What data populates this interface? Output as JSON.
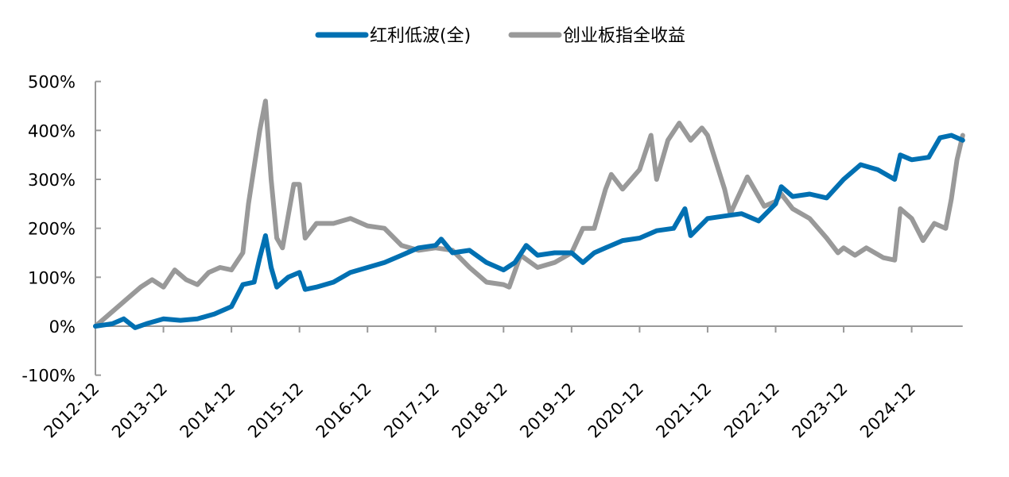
{
  "chart_data": {
    "type": "line",
    "title": "",
    "xlabel": "",
    "ylabel": "",
    "ylim": [
      -100,
      500
    ],
    "y_ticks": [
      "500%",
      "400%",
      "300%",
      "200%",
      "100%",
      "0%",
      "-100%"
    ],
    "y_tick_values": [
      500,
      400,
      300,
      200,
      100,
      0,
      -100
    ],
    "x_ticks": [
      "2012-12",
      "2013-12",
      "2014-12",
      "2015-12",
      "2016-12",
      "2017-12",
      "2018-12",
      "2019-12",
      "2020-12",
      "2021-12",
      "2022-12",
      "2023-12",
      "2024-12"
    ],
    "x_range": [
      "2012-12",
      "2025-09"
    ],
    "grid": false,
    "legend_position": "top",
    "series": [
      {
        "name": "红利低波(全)",
        "color": "#0070B2",
        "points": [
          [
            "2012-12",
            0
          ],
          [
            "2013-03",
            5
          ],
          [
            "2013-05",
            15
          ],
          [
            "2013-07",
            -3
          ],
          [
            "2013-09",
            5
          ],
          [
            "2013-12",
            15
          ],
          [
            "2014-03",
            12
          ],
          [
            "2014-06",
            15
          ],
          [
            "2014-09",
            25
          ],
          [
            "2014-11",
            35
          ],
          [
            "2014-12",
            40
          ],
          [
            "2015-02",
            85
          ],
          [
            "2015-04",
            90
          ],
          [
            "2015-05",
            140
          ],
          [
            "2015-06",
            185
          ],
          [
            "2015-07",
            120
          ],
          [
            "2015-08",
            80
          ],
          [
            "2015-10",
            100
          ],
          [
            "2015-12",
            110
          ],
          [
            "2016-01",
            75
          ],
          [
            "2016-03",
            80
          ],
          [
            "2016-06",
            90
          ],
          [
            "2016-09",
            110
          ],
          [
            "2016-12",
            120
          ],
          [
            "2017-03",
            130
          ],
          [
            "2017-06",
            145
          ],
          [
            "2017-09",
            160
          ],
          [
            "2017-12",
            165
          ],
          [
            "2018-01",
            178
          ],
          [
            "2018-03",
            150
          ],
          [
            "2018-06",
            155
          ],
          [
            "2018-09",
            130
          ],
          [
            "2018-12",
            115
          ],
          [
            "2019-02",
            130
          ],
          [
            "2019-04",
            165
          ],
          [
            "2019-06",
            145
          ],
          [
            "2019-09",
            150
          ],
          [
            "2019-12",
            150
          ],
          [
            "2020-02",
            130
          ],
          [
            "2020-04",
            150
          ],
          [
            "2020-06",
            160
          ],
          [
            "2020-09",
            175
          ],
          [
            "2020-12",
            180
          ],
          [
            "2021-03",
            195
          ],
          [
            "2021-06",
            200
          ],
          [
            "2021-08",
            240
          ],
          [
            "2021-09",
            185
          ],
          [
            "2021-12",
            220
          ],
          [
            "2022-03",
            225
          ],
          [
            "2022-06",
            230
          ],
          [
            "2022-09",
            215
          ],
          [
            "2022-12",
            250
          ],
          [
            "2023-01",
            285
          ],
          [
            "2023-03",
            265
          ],
          [
            "2023-06",
            270
          ],
          [
            "2023-09",
            262
          ],
          [
            "2023-12",
            300
          ],
          [
            "2024-03",
            330
          ],
          [
            "2024-06",
            320
          ],
          [
            "2024-09",
            300
          ],
          [
            "2024-10",
            350
          ],
          [
            "2024-12",
            340
          ],
          [
            "2025-03",
            345
          ],
          [
            "2025-05",
            385
          ],
          [
            "2025-07",
            390
          ],
          [
            "2025-09",
            380
          ]
        ]
      },
      {
        "name": "创业板指全收益",
        "color": "#999999",
        "points": [
          [
            "2012-12",
            0
          ],
          [
            "2013-02",
            20
          ],
          [
            "2013-05",
            50
          ],
          [
            "2013-08",
            80
          ],
          [
            "2013-10",
            95
          ],
          [
            "2013-12",
            80
          ],
          [
            "2014-02",
            115
          ],
          [
            "2014-04",
            95
          ],
          [
            "2014-06",
            85
          ],
          [
            "2014-08",
            110
          ],
          [
            "2014-10",
            120
          ],
          [
            "2014-12",
            115
          ],
          [
            "2015-02",
            150
          ],
          [
            "2015-03",
            250
          ],
          [
            "2015-05",
            400
          ],
          [
            "2015-06",
            460
          ],
          [
            "2015-07",
            300
          ],
          [
            "2015-08",
            180
          ],
          [
            "2015-09",
            160
          ],
          [
            "2015-11",
            290
          ],
          [
            "2015-12",
            290
          ],
          [
            "2016-01",
            180
          ],
          [
            "2016-03",
            210
          ],
          [
            "2016-06",
            210
          ],
          [
            "2016-09",
            220
          ],
          [
            "2016-12",
            205
          ],
          [
            "2017-03",
            200
          ],
          [
            "2017-06",
            165
          ],
          [
            "2017-09",
            155
          ],
          [
            "2017-12",
            160
          ],
          [
            "2018-03",
            155
          ],
          [
            "2018-06",
            120
          ],
          [
            "2018-09",
            90
          ],
          [
            "2018-12",
            85
          ],
          [
            "2019-01",
            80
          ],
          [
            "2019-03",
            145
          ],
          [
            "2019-06",
            120
          ],
          [
            "2019-09",
            130
          ],
          [
            "2019-12",
            150
          ],
          [
            "2020-02",
            200
          ],
          [
            "2020-04",
            200
          ],
          [
            "2020-06",
            280
          ],
          [
            "2020-07",
            310
          ],
          [
            "2020-09",
            280
          ],
          [
            "2020-12",
            320
          ],
          [
            "2021-02",
            390
          ],
          [
            "2021-03",
            300
          ],
          [
            "2021-05",
            380
          ],
          [
            "2021-07",
            415
          ],
          [
            "2021-09",
            380
          ],
          [
            "2021-11",
            405
          ],
          [
            "2021-12",
            390
          ],
          [
            "2022-03",
            280
          ],
          [
            "2022-04",
            230
          ],
          [
            "2022-07",
            305
          ],
          [
            "2022-10",
            245
          ],
          [
            "2022-12",
            255
          ],
          [
            "2023-01",
            270
          ],
          [
            "2023-03",
            240
          ],
          [
            "2023-06",
            220
          ],
          [
            "2023-09",
            180
          ],
          [
            "2023-11",
            150
          ],
          [
            "2023-12",
            160
          ],
          [
            "2024-02",
            145
          ],
          [
            "2024-04",
            160
          ],
          [
            "2024-07",
            140
          ],
          [
            "2024-09",
            135
          ],
          [
            "2024-10",
            240
          ],
          [
            "2024-12",
            220
          ],
          [
            "2025-02",
            175
          ],
          [
            "2025-04",
            210
          ],
          [
            "2025-06",
            200
          ],
          [
            "2025-07",
            260
          ],
          [
            "2025-08",
            340
          ],
          [
            "2025-09",
            390
          ]
        ]
      }
    ]
  }
}
